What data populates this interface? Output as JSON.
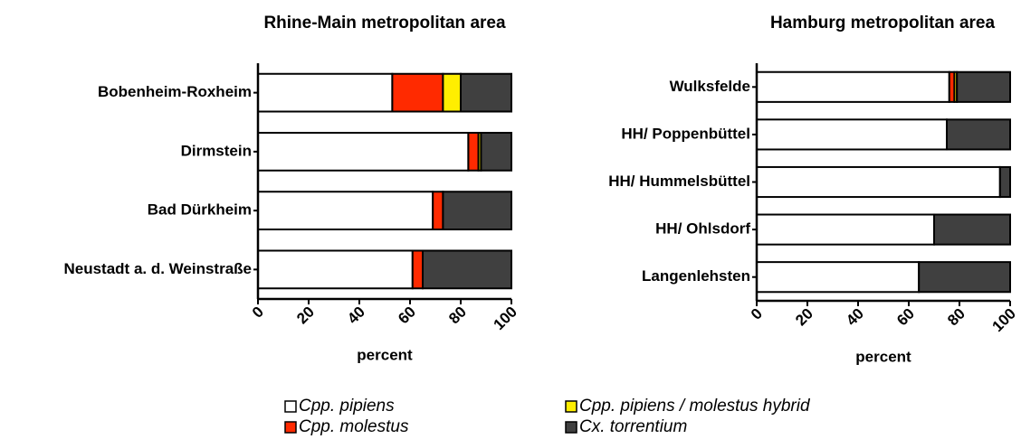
{
  "chart_data": [
    {
      "type": "stacked-bar-horizontal",
      "title": "Rhine-Main metropolitan area",
      "xlabel": "percent",
      "categories": [
        "Bobenheim-Roxheim",
        "Dirmstein",
        "Bad Dürkheim",
        "Neustadt a. d. Weinstraße"
      ],
      "series": [
        {
          "name": "Cpp. pipiens",
          "color": "#ffffff",
          "values": [
            53,
            83,
            69,
            61
          ]
        },
        {
          "name": "Cpp. molestus",
          "color": "#ff2a00",
          "values": [
            20,
            4,
            4,
            4
          ]
        },
        {
          "name": "Cpp. pipiens / molestus hybrid",
          "color": "#ffee00",
          "values": [
            7,
            1,
            0,
            0
          ]
        },
        {
          "name": "Cx. torrentium",
          "color": "#404040",
          "values": [
            20,
            12,
            27,
            35
          ]
        }
      ],
      "xlim": [
        0,
        100
      ],
      "xticks": [
        0,
        20,
        40,
        60,
        80,
        100
      ]
    },
    {
      "type": "stacked-bar-horizontal",
      "title": "Hamburg metropolitan area",
      "xlabel": "percent",
      "categories": [
        "Wulksfelde",
        "HH/ Poppenbüttel",
        "HH/ Hummelsbüttel",
        "HH/ Ohlsdorf",
        "Langenlehsten"
      ],
      "series": [
        {
          "color": "#ffffff",
          "values": [
            76,
            75,
            96,
            70,
            64
          ]
        },
        {
          "color": "#ff2a00",
          "values": [
            2,
            0,
            0,
            0,
            0
          ]
        },
        {
          "color": "#ffee00",
          "values": [
            1,
            0,
            0,
            0,
            0
          ]
        },
        {
          "color": "#404040",
          "values": [
            21,
            25,
            4,
            30,
            36
          ]
        }
      ],
      "xlim": [
        0,
        100
      ],
      "xticks": [
        0,
        20,
        40,
        60,
        80,
        100
      ]
    }
  ]
}
